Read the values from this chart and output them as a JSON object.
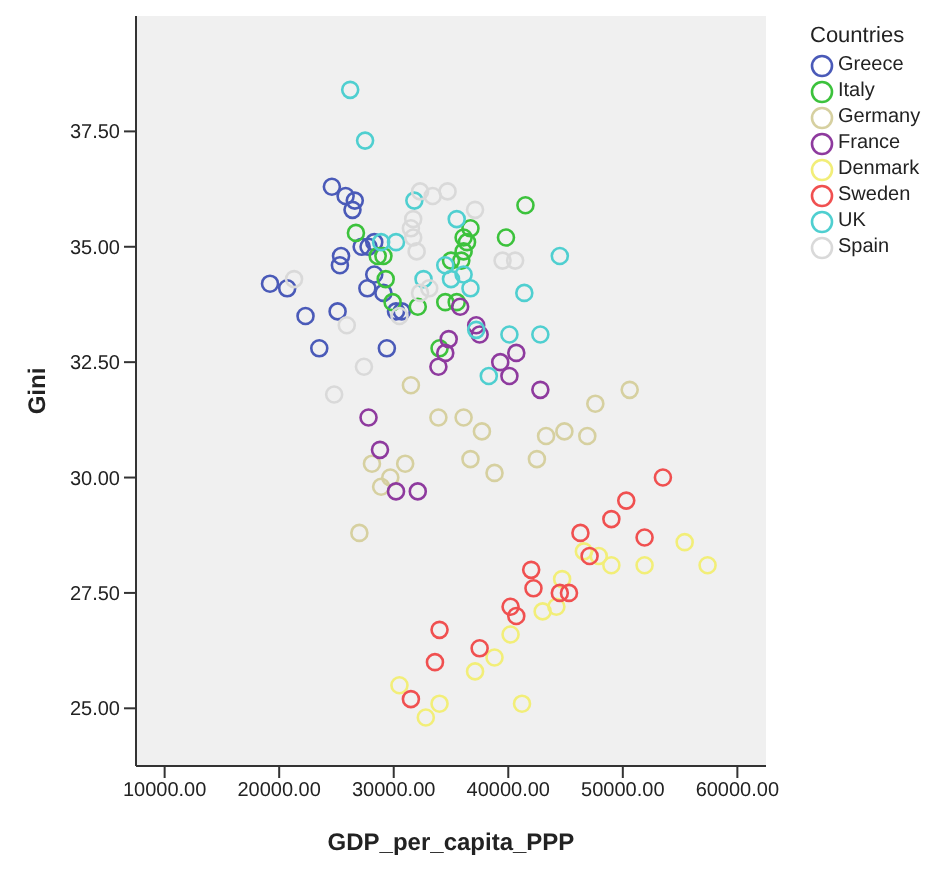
{
  "chart_data": {
    "type": "scatter",
    "xlabel": "GDP_per_capita_PPP",
    "ylabel": "Gini",
    "legend_title": "Countries",
    "legend": "right",
    "marker": "circle",
    "grid": false,
    "xlim": [
      7500,
      62500
    ],
    "ylim": [
      23.75,
      40
    ],
    "xticks": [
      {
        "value": 10000,
        "label": "10000.00"
      },
      {
        "value": 20000,
        "label": "20000.00"
      },
      {
        "value": 30000,
        "label": "30000.00"
      },
      {
        "value": 40000,
        "label": "40000.00"
      },
      {
        "value": 50000,
        "label": "50000.00"
      },
      {
        "value": 60000,
        "label": "60000.00"
      }
    ],
    "yticks": [
      {
        "value": 25,
        "label": "25.00"
      },
      {
        "value": 27.5,
        "label": "27.50"
      },
      {
        "value": 30,
        "label": "30.00"
      },
      {
        "value": 32.5,
        "label": "32.50"
      },
      {
        "value": 35,
        "label": "35.00"
      },
      {
        "value": 37.5,
        "label": "37.50"
      }
    ],
    "series": [
      {
        "name": "Greece",
        "color": "#4a5ab8",
        "x": [
          24600,
          25800,
          26600,
          26400,
          25400,
          25300,
          27200,
          27800,
          28300,
          19200,
          20700,
          22300,
          25100,
          23500,
          28300,
          27700,
          29100,
          30200,
          30700,
          29400
        ],
        "values": [
          36.3,
          36.1,
          36.0,
          35.8,
          34.8,
          34.6,
          35.0,
          35.0,
          35.1,
          34.2,
          34.1,
          33.5,
          33.6,
          32.8,
          34.4,
          34.1,
          34.0,
          33.6,
          33.6,
          32.8
        ]
      },
      {
        "name": "Italy",
        "color": "#3cc23c",
        "x": [
          26700,
          28600,
          29100,
          29300,
          29900,
          32100,
          34500,
          35500,
          34000,
          35000,
          35900,
          36100,
          36700,
          36400,
          36100,
          41500,
          39800
        ],
        "values": [
          35.3,
          34.8,
          34.8,
          34.3,
          33.8,
          33.7,
          33.8,
          33.8,
          32.8,
          34.7,
          34.7,
          35.2,
          35.4,
          35.1,
          34.9,
          35.9,
          35.2
        ]
      },
      {
        "name": "Germany",
        "color": "#d6d0a0",
        "x": [
          31500,
          33900,
          36100,
          37700,
          43300,
          44900,
          46900,
          47600,
          50600,
          36700,
          38800,
          42500,
          31000,
          28100,
          28900,
          29700,
          27000
        ],
        "values": [
          32.0,
          31.3,
          31.3,
          31.0,
          30.9,
          31.0,
          30.9,
          31.6,
          31.9,
          30.4,
          30.1,
          30.4,
          30.3,
          30.3,
          29.8,
          30.0,
          28.8
        ]
      },
      {
        "name": "France",
        "color": "#8e3a9e",
        "x": [
          35800,
          34800,
          34500,
          33900,
          27800,
          37200,
          37500,
          40700,
          39300,
          40100,
          42800,
          28800,
          30200,
          32100
        ],
        "values": [
          33.7,
          33.0,
          32.7,
          32.4,
          31.3,
          33.3,
          33.1,
          32.7,
          32.5,
          32.2,
          31.9,
          30.6,
          29.7,
          29.7
        ]
      },
      {
        "name": "Denmark",
        "color": "#f2ee78",
        "x": [
          30500,
          34000,
          32800,
          55400,
          57400,
          51900,
          49000,
          47900,
          46600,
          44700,
          44200,
          43000,
          40200,
          38800,
          37100,
          41200
        ],
        "values": [
          25.5,
          25.1,
          24.8,
          28.6,
          28.1,
          28.1,
          28.1,
          28.3,
          28.4,
          27.8,
          27.2,
          27.1,
          26.6,
          26.1,
          25.8,
          25.1
        ]
      },
      {
        "name": "Sweden",
        "color": "#f05050",
        "x": [
          34000,
          33600,
          31500,
          53500,
          50300,
          49000,
          51900,
          46300,
          47100,
          42000,
          42200,
          44500,
          45300,
          40200,
          40700,
          37500
        ],
        "values": [
          26.7,
          26.0,
          25.2,
          30.0,
          29.5,
          29.1,
          28.7,
          28.8,
          28.3,
          28.0,
          27.6,
          27.5,
          27.5,
          27.2,
          27.0,
          26.3
        ]
      },
      {
        "name": "UK",
        "color": "#4fcfd0",
        "x": [
          26200,
          27500,
          31800,
          35500,
          30200,
          28900,
          32600,
          34500,
          35000,
          36100,
          44500,
          36700,
          41400,
          37200,
          40100,
          42800,
          38300
        ],
        "values": [
          38.4,
          37.3,
          36.0,
          35.6,
          35.1,
          35.1,
          34.3,
          34.6,
          34.3,
          34.4,
          34.8,
          34.1,
          34.0,
          33.2,
          33.1,
          33.1,
          32.2
        ]
      },
      {
        "name": "Spain",
        "color": "#d9d9d9",
        "x": [
          21300,
          25900,
          27400,
          24800,
          32300,
          33400,
          34700,
          31700,
          31500,
          31700,
          32000,
          32300,
          33100,
          30500,
          37100,
          39500,
          40600
        ],
        "values": [
          34.3,
          33.3,
          32.4,
          31.8,
          36.2,
          36.1,
          36.2,
          35.6,
          35.4,
          35.2,
          34.9,
          34.0,
          34.1,
          33.5,
          35.8,
          34.7,
          34.7
        ]
      }
    ]
  }
}
